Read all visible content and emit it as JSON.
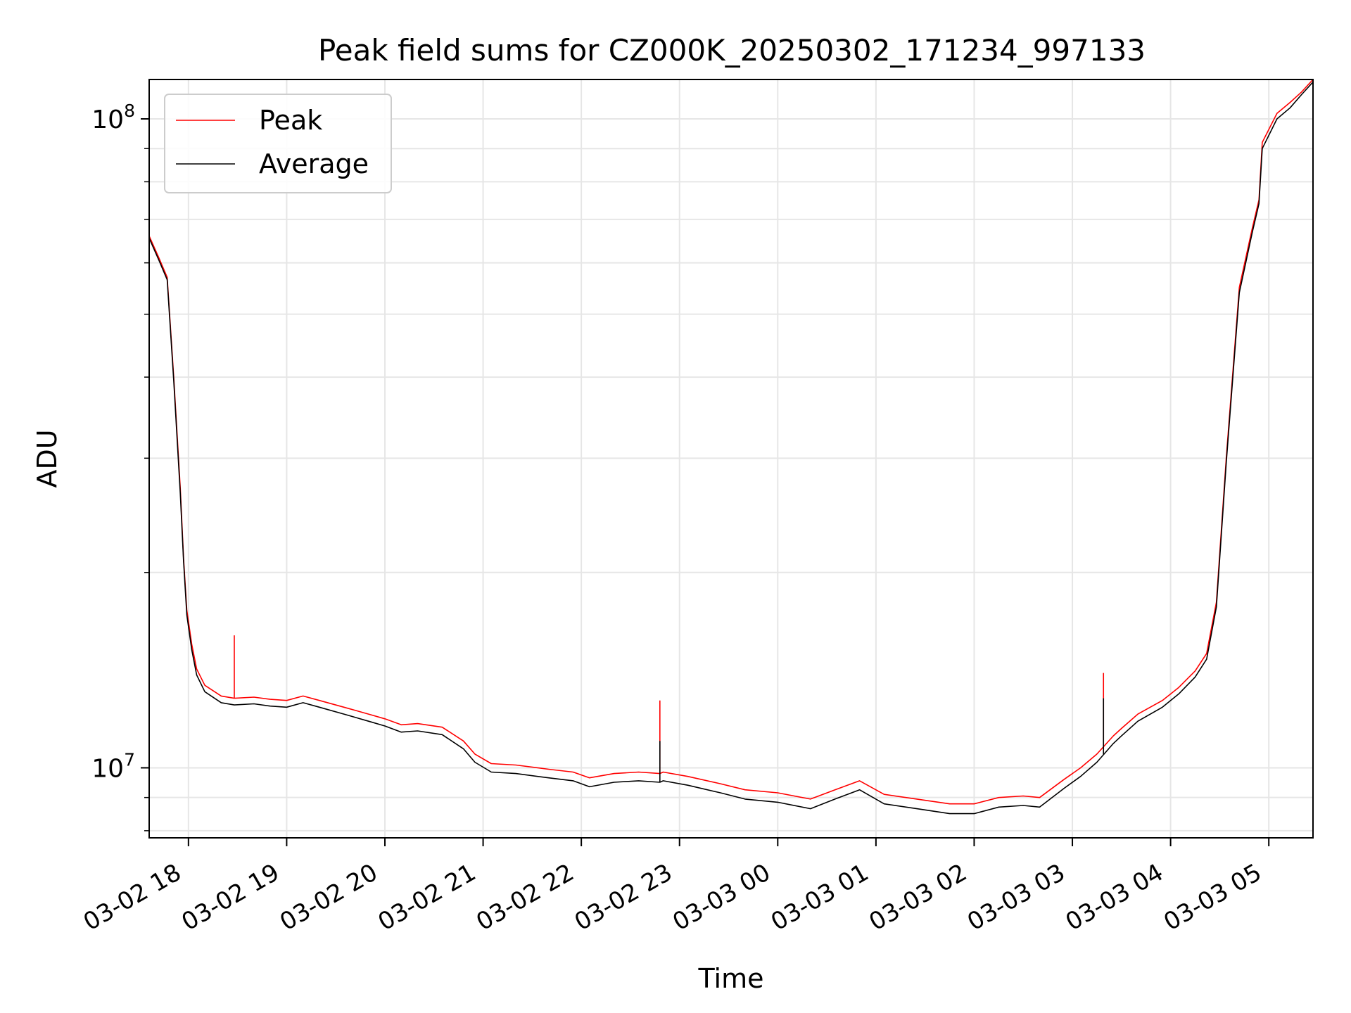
{
  "chart_data": {
    "type": "line",
    "title": "Peak field sums for CZ000K_20250302_171234_997133",
    "xlabel": "Time",
    "ylabel": "ADU",
    "x_scale": "time",
    "y_scale": "log",
    "xlim": [
      "2025-03-02 17:36",
      "2025-03-03 05:27"
    ],
    "ylim": [
      7800000,
      115000000
    ],
    "xticks": [
      "03-02 18",
      "03-02 19",
      "03-02 20",
      "03-02 21",
      "03-02 22",
      "03-02 23",
      "03-03 00",
      "03-03 01",
      "03-03 02",
      "03-03 03",
      "03-03 04",
      "03-03 05"
    ],
    "xtick_times": [
      "2025-03-02 18:00",
      "2025-03-02 19:00",
      "2025-03-02 20:00",
      "2025-03-02 21:00",
      "2025-03-02 22:00",
      "2025-03-02 23:00",
      "2025-03-03 00:00",
      "2025-03-03 01:00",
      "2025-03-03 02:00",
      "2025-03-03 03:00",
      "2025-03-03 04:00",
      "2025-03-03 05:00"
    ],
    "yticks": [
      {
        "value": 10000000,
        "base": "10",
        "exp": "7"
      },
      {
        "value": 100000000,
        "base": "10",
        "exp": "8"
      }
    ],
    "grid": true,
    "legend_position": "upper-left",
    "series": [
      {
        "name": "Peak",
        "color": "#ff0000",
        "x": [
          "2025-03-02 17:36",
          "2025-03-02 17:42",
          "2025-03-02 17:47",
          "2025-03-02 17:51",
          "2025-03-02 17:55",
          "2025-03-02 17:57",
          "2025-03-02 17:59",
          "2025-03-02 18:02",
          "2025-03-02 18:05",
          "2025-03-02 18:10",
          "2025-03-02 18:20",
          "2025-03-02 18:28",
          "2025-03-02 18:40",
          "2025-03-02 18:50",
          "2025-03-02 19:00",
          "2025-03-02 19:10",
          "2025-03-02 19:20",
          "2025-03-02 19:35",
          "2025-03-02 19:50",
          "2025-03-02 20:00",
          "2025-03-02 20:10",
          "2025-03-02 20:20",
          "2025-03-02 20:35",
          "2025-03-02 20:48",
          "2025-03-02 20:55",
          "2025-03-02 21:05",
          "2025-03-02 21:20",
          "2025-03-02 21:40",
          "2025-03-02 21:55",
          "2025-03-02 22:05",
          "2025-03-02 22:20",
          "2025-03-02 22:35",
          "2025-03-02 22:48",
          "2025-03-02 22:50",
          "2025-03-02 23:05",
          "2025-03-02 23:25",
          "2025-03-02 23:40",
          "2025-03-03 00:00",
          "2025-03-03 00:20",
          "2025-03-03 00:35",
          "2025-03-03 00:50",
          "2025-03-03 01:05",
          "2025-03-03 01:25",
          "2025-03-03 01:45",
          "2025-03-03 02:00",
          "2025-03-03 02:15",
          "2025-03-03 02:30",
          "2025-03-03 02:40",
          "2025-03-03 02:55",
          "2025-03-03 03:05",
          "2025-03-03 03:15",
          "2025-03-03 03:25",
          "2025-03-03 03:30",
          "2025-03-03 03:40",
          "2025-03-03 03:55",
          "2025-03-03 04:05",
          "2025-03-03 04:15",
          "2025-03-03 04:22",
          "2025-03-03 04:28",
          "2025-03-03 04:34",
          "2025-03-03 04:42",
          "2025-03-03 04:50",
          "2025-03-03 04:54",
          "2025-03-03 04:56",
          "2025-03-03 05:05",
          "2025-03-03 05:13",
          "2025-03-03 05:20",
          "2025-03-03 05:27"
        ],
        "y": [
          66000000,
          61000000,
          57000000,
          40000000,
          27000000,
          21000000,
          17500000,
          15500000,
          14200000,
          13400000,
          12900000,
          12800000,
          12850000,
          12750000,
          12700000,
          12900000,
          12700000,
          12400000,
          12100000,
          11900000,
          11650000,
          11700000,
          11550000,
          11000000,
          10500000,
          10150000,
          10100000,
          9950000,
          9850000,
          9650000,
          9800000,
          9850000,
          9800000,
          9850000,
          9700000,
          9450000,
          9250000,
          9150000,
          8950000,
          9250000,
          9550000,
          9100000,
          8950000,
          8800000,
          8800000,
          9000000,
          9050000,
          9000000,
          9600000,
          10000000,
          10500000,
          11200000,
          11500000,
          12100000,
          12700000,
          13300000,
          14100000,
          15000000,
          18000000,
          30000000,
          55000000,
          68000000,
          75000000,
          92000000,
          102000000,
          106000000,
          110000000,
          115000000
        ]
      },
      {
        "name": "Average",
        "color": "#000000",
        "x": [
          "2025-03-02 17:36",
          "2025-03-02 17:42",
          "2025-03-02 17:47",
          "2025-03-02 17:51",
          "2025-03-02 17:55",
          "2025-03-02 17:57",
          "2025-03-02 17:59",
          "2025-03-02 18:02",
          "2025-03-02 18:05",
          "2025-03-02 18:10",
          "2025-03-02 18:20",
          "2025-03-02 18:28",
          "2025-03-02 18:40",
          "2025-03-02 18:50",
          "2025-03-02 19:00",
          "2025-03-02 19:10",
          "2025-03-02 19:20",
          "2025-03-02 19:35",
          "2025-03-02 19:50",
          "2025-03-02 20:00",
          "2025-03-02 20:10",
          "2025-03-02 20:20",
          "2025-03-02 20:35",
          "2025-03-02 20:48",
          "2025-03-02 20:55",
          "2025-03-02 21:05",
          "2025-03-02 21:20",
          "2025-03-02 21:40",
          "2025-03-02 21:55",
          "2025-03-02 22:05",
          "2025-03-02 22:20",
          "2025-03-02 22:35",
          "2025-03-02 22:48",
          "2025-03-02 22:50",
          "2025-03-02 23:05",
          "2025-03-02 23:25",
          "2025-03-02 23:40",
          "2025-03-03 00:00",
          "2025-03-03 00:20",
          "2025-03-03 00:35",
          "2025-03-03 00:50",
          "2025-03-03 01:05",
          "2025-03-03 01:25",
          "2025-03-03 01:45",
          "2025-03-03 02:00",
          "2025-03-03 02:15",
          "2025-03-03 02:30",
          "2025-03-03 02:40",
          "2025-03-03 02:55",
          "2025-03-03 03:05",
          "2025-03-03 03:15",
          "2025-03-03 03:25",
          "2025-03-03 03:30",
          "2025-03-03 03:40",
          "2025-03-03 03:55",
          "2025-03-03 04:05",
          "2025-03-03 04:15",
          "2025-03-03 04:22",
          "2025-03-03 04:28",
          "2025-03-03 04:34",
          "2025-03-03 04:42",
          "2025-03-03 04:50",
          "2025-03-03 04:54",
          "2025-03-03 04:56",
          "2025-03-03 05:05",
          "2025-03-03 05:13",
          "2025-03-03 05:20",
          "2025-03-03 05:27"
        ],
        "y": [
          65500000,
          60500000,
          56500000,
          39500000,
          26500000,
          20800000,
          17200000,
          15200000,
          13900000,
          13100000,
          12600000,
          12500000,
          12550000,
          12450000,
          12400000,
          12600000,
          12400000,
          12100000,
          11800000,
          11600000,
          11350000,
          11400000,
          11250000,
          10700000,
          10200000,
          9850000,
          9800000,
          9650000,
          9550000,
          9350000,
          9500000,
          9550000,
          9500000,
          9550000,
          9400000,
          9150000,
          8950000,
          8850000,
          8650000,
          8950000,
          9250000,
          8800000,
          8650000,
          8500000,
          8500000,
          8700000,
          8750000,
          8700000,
          9300000,
          9700000,
          10200000,
          10900000,
          11200000,
          11800000,
          12400000,
          13000000,
          13800000,
          14700000,
          17700000,
          29500000,
          54000000,
          67000000,
          74000000,
          90000000,
          100000000,
          104000000,
          109000000,
          114000000
        ]
      }
    ],
    "spikes": [
      {
        "series": "Peak",
        "x": "2025-03-02 18:28",
        "y": 16000000
      },
      {
        "series": "Peak",
        "x": "2025-03-02 22:48",
        "y": 12700000
      },
      {
        "series": "Average",
        "x": "2025-03-02 22:48",
        "y": 11000000
      },
      {
        "series": "Peak",
        "x": "2025-03-03 03:19",
        "y": 14000000
      },
      {
        "series": "Average",
        "x": "2025-03-03 03:19",
        "y": 12800000
      }
    ]
  }
}
